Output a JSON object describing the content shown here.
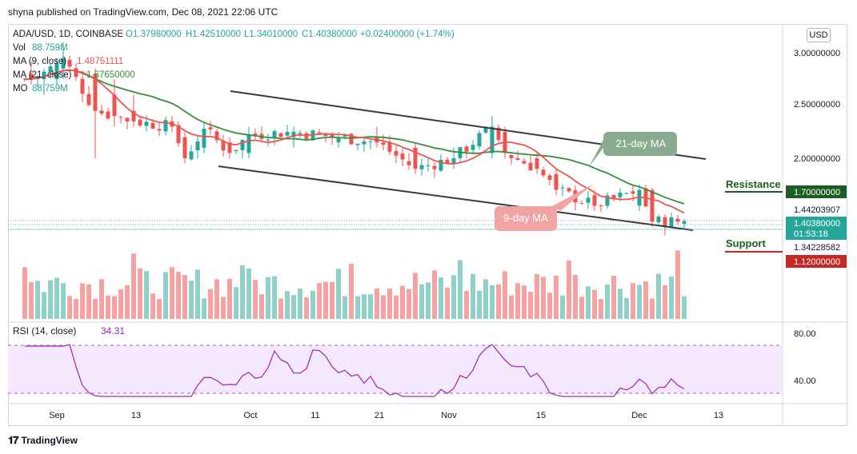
{
  "publisher_line": "shyna published on TradingView.com, Dec 08, 2021 22:06 UTC",
  "currency_button": "USD",
  "footer_brand": "TradingView",
  "legend": {
    "symbol": "ADA/USD, 1D, COINBASE",
    "open": "O1.37980000",
    "high": "H1.42510000",
    "low": "L1.34010000",
    "close": "C1.40380000",
    "change": "+0.02400000 (+1.74%)",
    "vol_label": "Vol",
    "vol_value": "88.759M",
    "ma9_label": "MA (9, close)",
    "ma9_value": "1.48751111",
    "ma21_label": "MA (21, close)",
    "ma21_value": "1.67650000",
    "mo_label": "MO",
    "mo_value": "88.759M"
  },
  "annotations": {
    "ma21_bubble": "21-day MA",
    "ma9_bubble": "9-day MA",
    "resistance": "Resistance",
    "support": "Support"
  },
  "price_axis_labels": [
    "3.00000000",
    "2.50000000",
    "2.00000000"
  ],
  "price_tags": {
    "resistance_tag": "1.70000000",
    "ma9_tag": "1.44203907",
    "last_price": "1.40380000",
    "countdown": "01:53:18",
    "low_tag": "1.34228582",
    "support_tag": "1.12000000"
  },
  "rsi": {
    "label": "RSI (14, close)",
    "value": "34.31",
    "upper_band": 70,
    "lower_band": 30,
    "axis_labels": [
      "80.00",
      "40.00"
    ]
  },
  "x_axis_labels": [
    "Sep",
    "13",
    "Oct",
    "11",
    "21",
    "Nov",
    "15",
    "Dec",
    "13"
  ],
  "colors": {
    "up": "#26a69a",
    "down": "#ef5350",
    "ma9": "#ef5350",
    "ma21": "#388e3c",
    "rsi_line": "#9c27b0",
    "rsi_band": "#f3e8fd",
    "channel": "#363a45",
    "resistance": "#1b5e20",
    "support": "#c62828"
  },
  "chart_data": {
    "type": "candlestick",
    "x_range": [
      "2021-08-27",
      "2021-12-08"
    ],
    "y_range": [
      1.12,
      3.0
    ],
    "candles": [
      {
        "x": "2021-08-28",
        "o": 2.8,
        "h": 2.92,
        "l": 2.7,
        "c": 2.75
      },
      {
        "x": "2021-08-30",
        "o": 2.75,
        "h": 2.85,
        "l": 2.6,
        "c": 2.82
      },
      {
        "x": "2021-09-01",
        "o": 2.75,
        "h": 2.95,
        "l": 2.7,
        "c": 2.9
      },
      {
        "x": "2021-09-02",
        "o": 2.85,
        "h": 3.1,
        "l": 2.75,
        "c": 2.95
      },
      {
        "x": "2021-09-07",
        "o": 2.8,
        "h": 2.85,
        "l": 2.0,
        "c": 2.45
      },
      {
        "x": "2021-09-10",
        "o": 2.6,
        "h": 2.75,
        "l": 2.3,
        "c": 2.4
      },
      {
        "x": "2021-09-13",
        "o": 2.45,
        "h": 2.6,
        "l": 2.3,
        "c": 2.35
      },
      {
        "x": "2021-09-19",
        "o": 2.35,
        "h": 2.4,
        "l": 2.25,
        "c": 2.3
      },
      {
        "x": "2021-09-21",
        "o": 2.2,
        "h": 2.25,
        "l": 1.95,
        "c": 2.0
      },
      {
        "x": "2021-09-24",
        "o": 2.1,
        "h": 2.35,
        "l": 2.05,
        "c": 2.28
      },
      {
        "x": "2021-09-28",
        "o": 2.15,
        "h": 2.2,
        "l": 2.0,
        "c": 2.05
      },
      {
        "x": "2021-10-01",
        "o": 2.05,
        "h": 2.3,
        "l": 2.0,
        "c": 2.22
      },
      {
        "x": "2021-10-08",
        "o": 2.2,
        "h": 2.3,
        "l": 2.1,
        "c": 2.25
      },
      {
        "x": "2021-10-15",
        "o": 2.15,
        "h": 2.25,
        "l": 2.1,
        "c": 2.2
      },
      {
        "x": "2021-10-21",
        "o": 2.2,
        "h": 2.3,
        "l": 2.1,
        "c": 2.15
      },
      {
        "x": "2021-10-27",
        "o": 2.1,
        "h": 2.15,
        "l": 1.85,
        "c": 1.9
      },
      {
        "x": "2021-11-02",
        "o": 1.95,
        "h": 2.1,
        "l": 1.9,
        "c": 2.0
      },
      {
        "x": "2021-11-08",
        "o": 2.05,
        "h": 2.4,
        "l": 2.0,
        "c": 2.3
      },
      {
        "x": "2021-11-10",
        "o": 2.25,
        "h": 2.3,
        "l": 2.0,
        "c": 2.05
      },
      {
        "x": "2021-11-15",
        "o": 2.0,
        "h": 2.05,
        "l": 1.85,
        "c": 1.9
      },
      {
        "x": "2021-11-18",
        "o": 1.85,
        "h": 1.9,
        "l": 1.65,
        "c": 1.7
      },
      {
        "x": "2021-11-24",
        "o": 1.65,
        "h": 1.7,
        "l": 1.5,
        "c": 1.55
      },
      {
        "x": "2021-12-01",
        "o": 1.55,
        "h": 1.75,
        "l": 1.5,
        "c": 1.7
      },
      {
        "x": "2021-12-03",
        "o": 1.7,
        "h": 1.72,
        "l": 1.35,
        "c": 1.4
      },
      {
        "x": "2021-12-08",
        "o": 1.3798,
        "h": 1.4251,
        "l": 1.3401,
        "c": 1.4038
      }
    ],
    "ma9_value": 1.48751111,
    "ma21_value": 1.6765,
    "resistance": 1.7,
    "support": 1.12,
    "volume_last": "88.759M",
    "rsi_last": 34.31
  }
}
